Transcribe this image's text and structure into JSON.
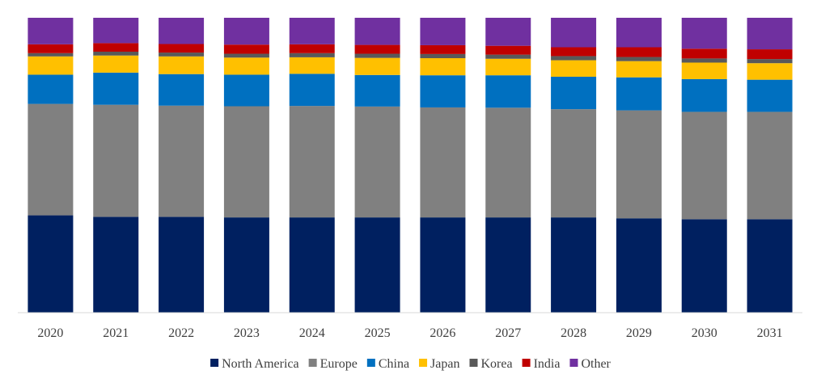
{
  "chart_data": {
    "type": "bar",
    "stacked": true,
    "normalized": true,
    "title": "",
    "xlabel": "",
    "ylabel": "",
    "ylim": [
      0,
      100
    ],
    "grid": false,
    "legend_position": "bottom",
    "categories": [
      "2020",
      "2021",
      "2022",
      "2023",
      "2024",
      "2025",
      "2026",
      "2027",
      "2028",
      "2029",
      "2030",
      "2031"
    ],
    "series": [
      {
        "name": "North America",
        "color": "#002060",
        "values": [
          33.0,
          32.5,
          32.5,
          32.3,
          32.3,
          32.3,
          32.3,
          32.3,
          32.3,
          32.0,
          31.7,
          31.7
        ]
      },
      {
        "name": "Europe",
        "color": "#808080",
        "values": [
          37.8,
          38.0,
          37.7,
          37.7,
          37.8,
          37.6,
          37.3,
          37.2,
          36.7,
          36.6,
          36.4,
          36.4
        ]
      },
      {
        "name": "China",
        "color": "#0070C0",
        "values": [
          9.9,
          10.9,
          10.7,
          10.7,
          10.9,
          10.7,
          10.9,
          11.0,
          11.0,
          11.2,
          11.1,
          10.9
        ]
      },
      {
        "name": "Japan",
        "color": "#FFC000",
        "values": [
          6.2,
          5.8,
          6.0,
          5.8,
          5.6,
          5.8,
          5.8,
          5.6,
          5.6,
          5.5,
          5.6,
          5.6
        ]
      },
      {
        "name": "Korea",
        "color": "#595959",
        "values": [
          1.1,
          1.3,
          1.3,
          1.3,
          1.4,
          1.4,
          1.4,
          1.4,
          1.4,
          1.4,
          1.4,
          1.4
        ]
      },
      {
        "name": "India",
        "color": "#C00000",
        "values": [
          3.0,
          2.9,
          2.9,
          3.1,
          3.0,
          3.0,
          3.0,
          3.0,
          3.0,
          3.3,
          3.3,
          3.3
        ]
      },
      {
        "name": "Other",
        "color": "#7030A0",
        "values": [
          9.0,
          8.6,
          8.9,
          9.1,
          9.0,
          9.2,
          9.3,
          9.5,
          10.0,
          10.0,
          10.5,
          10.7
        ]
      }
    ]
  }
}
